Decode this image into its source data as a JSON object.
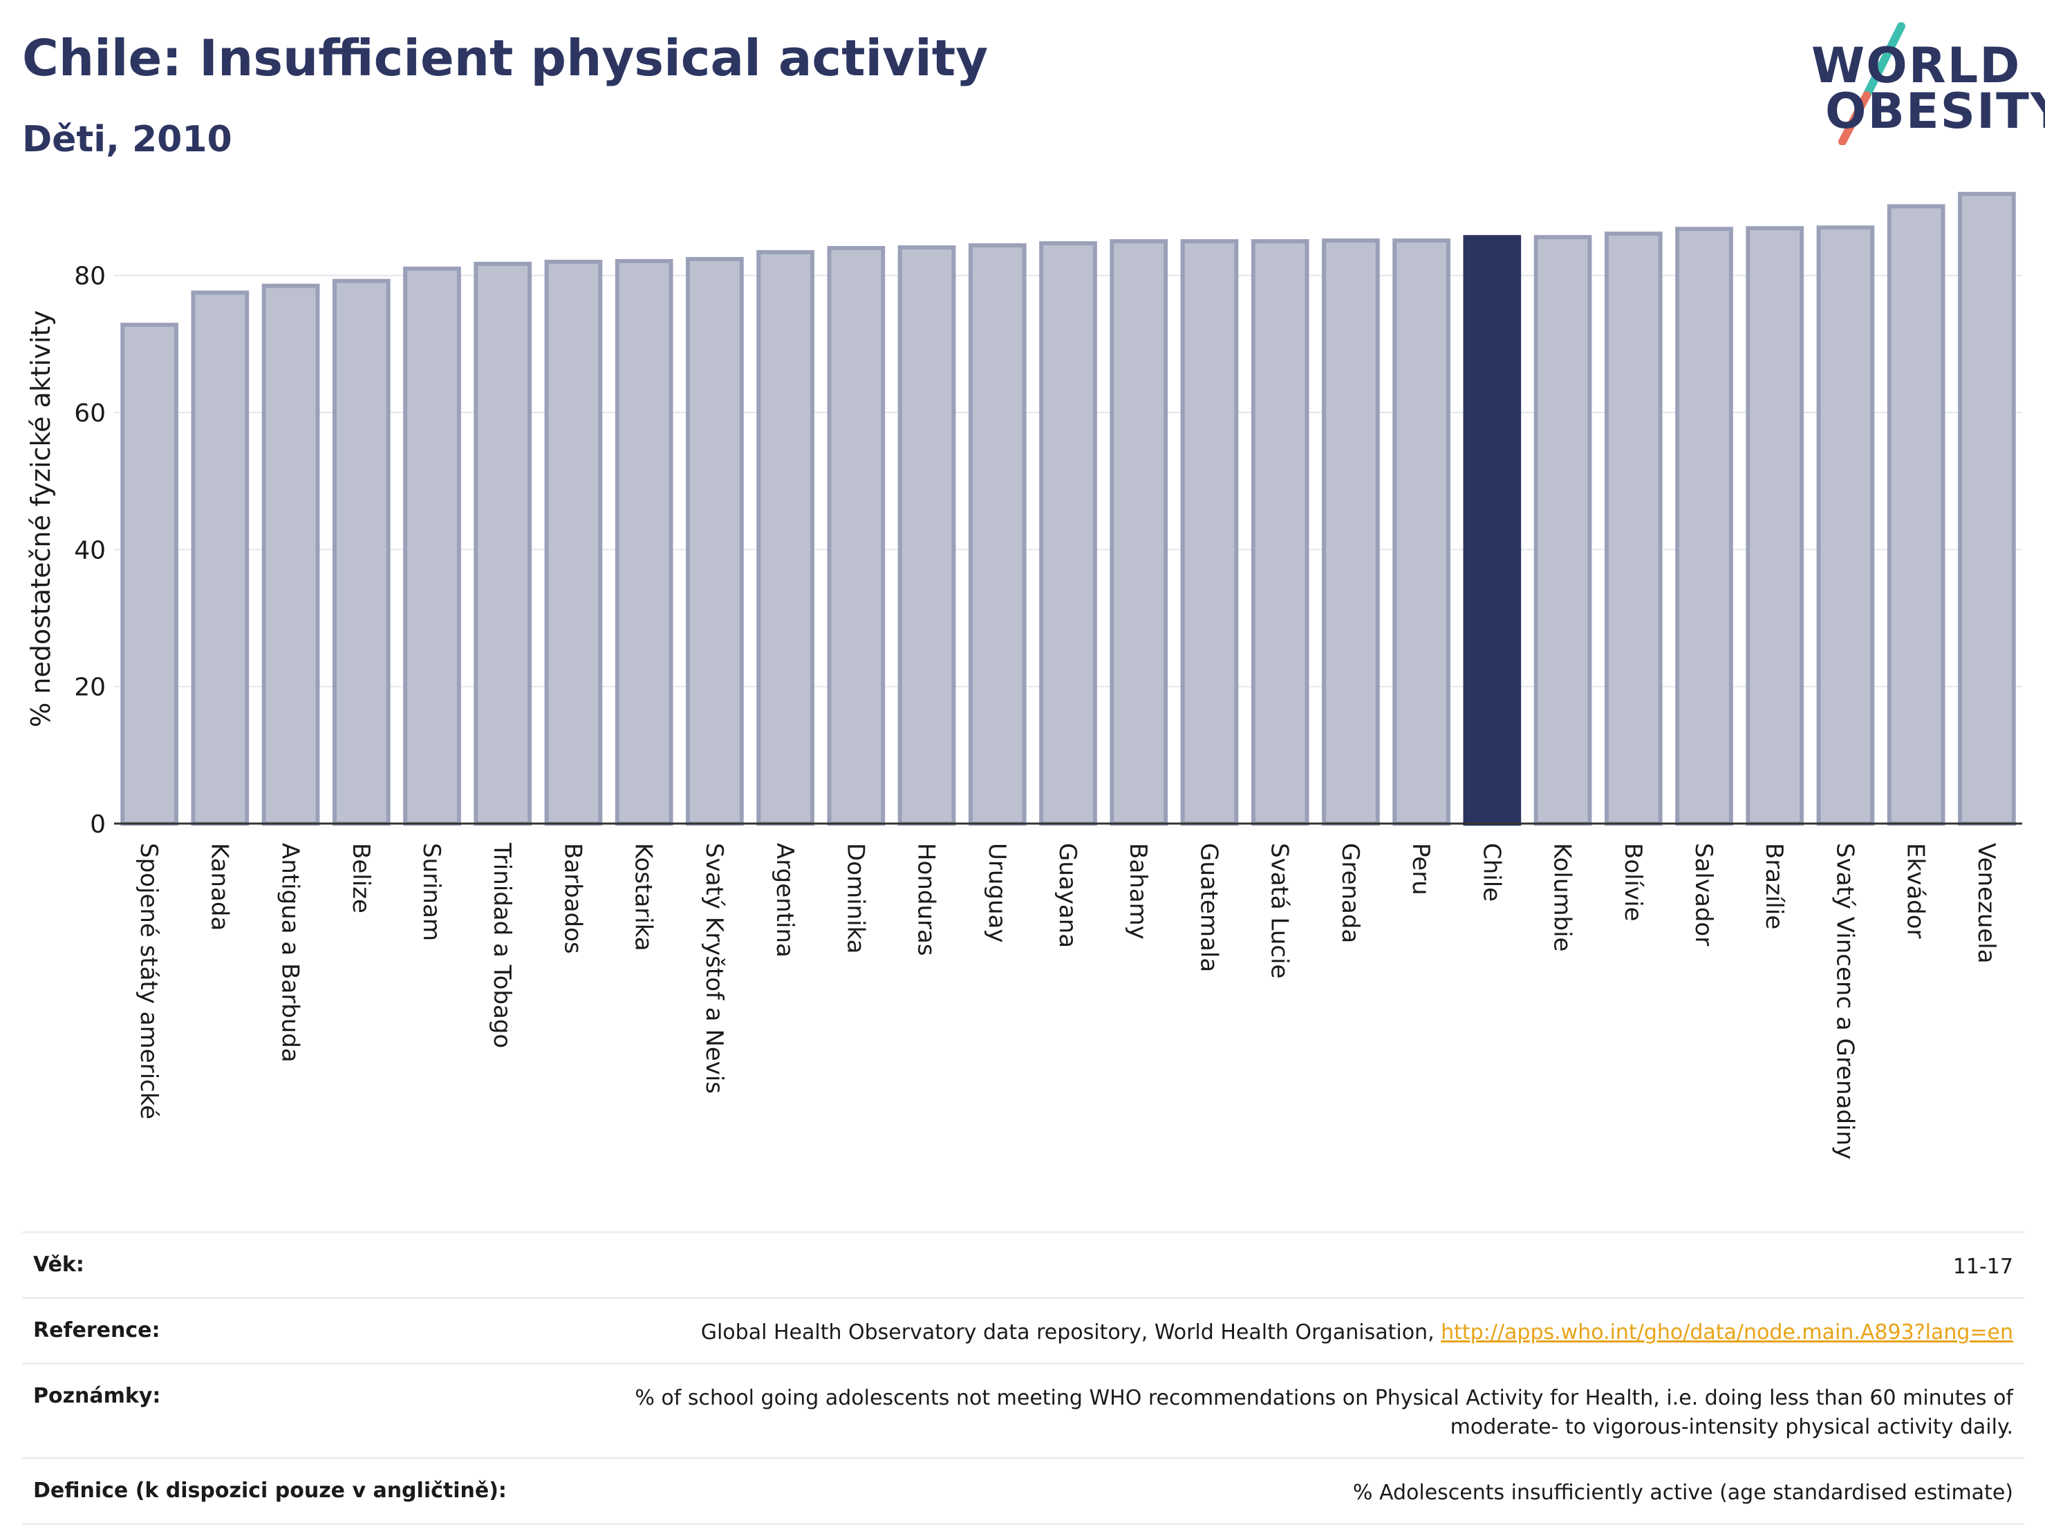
{
  "header": {
    "title": "Chile: Insufficient physical activity",
    "subtitle": "Děti, 2010"
  },
  "logo": {
    "line1": "WORLD",
    "line2": "OBESITY",
    "colors": [
      "#2d3561",
      "#3dbfb0",
      "#e8705f"
    ]
  },
  "chart_data": {
    "type": "bar",
    "ylabel": "% nedostatečné fyzické aktivity",
    "ylim": [
      0,
      95
    ],
    "yticks": [
      0,
      20,
      40,
      60,
      80
    ],
    "grid": true,
    "highlight": "Chile",
    "colors": {
      "bar": "#bdc1cf",
      "bar_edge": "#9aa0b8",
      "highlight": "#2b3361"
    },
    "categories": [
      "Spojené státy americké",
      "Kanada",
      "Antigua a Barbuda",
      "Belize",
      "Surinam",
      "Trinidad a Tobago",
      "Barbados",
      "Kostarika",
      "Svatý Kryštof a Nevis",
      "Argentina",
      "Dominika",
      "Honduras",
      "Uruguay",
      "Guayana",
      "Bahamy",
      "Guatemala",
      "Svatá Lucie",
      "Grenada",
      "Peru",
      "Chile",
      "Kolumbie",
      "Bolívie",
      "Salvador",
      "Brazílie",
      "Svatý Vincenc a Grenadiny",
      "Ekvádor",
      "Venezuela"
    ],
    "values": [
      72.8,
      77.5,
      78.5,
      79.2,
      81.0,
      81.7,
      82.0,
      82.1,
      82.4,
      83.4,
      84.0,
      84.1,
      84.4,
      84.7,
      85.0,
      85.0,
      85.0,
      85.1,
      85.1,
      85.6,
      85.6,
      86.1,
      86.8,
      86.9,
      87.0,
      90.1,
      91.9
    ]
  },
  "meta": {
    "age_label": "Věk:",
    "age_value": "11-17",
    "reference_label": "Reference:",
    "reference_text": "Global Health Observatory data repository, World Health Organisation, ",
    "reference_link": "http://apps.who.int/gho/data/node.main.A893?lang=en",
    "notes_label": "Poznámky:",
    "notes_line1": "% of school going adolescents not meeting WHO recommendations on Physical Activity for Health, i.e. doing less than 60 minutes of",
    "notes_line2": "moderate- to vigorous-intensity physical activity daily.",
    "definition_label": "Definice (k dispozici pouze v angličtině):",
    "definition_value": "% Adolescents insufficiently active (age standardised estimate)"
  }
}
